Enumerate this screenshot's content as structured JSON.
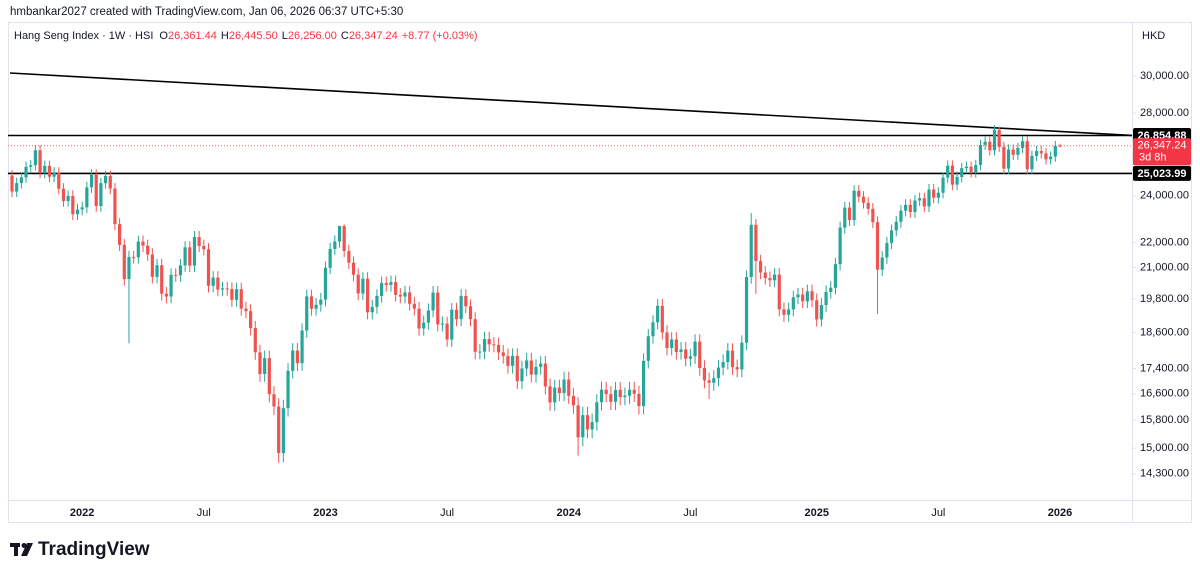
{
  "header": {
    "credit": "hmbankar2027 created with TradingView.com, Jan 06, 2026 06:37 UTC+5:30",
    "symbol": "Hang Seng Index · 1W · HSI",
    "ohlc": [
      {
        "key": "O",
        "value": "26,361.44"
      },
      {
        "key": "H",
        "value": "26,445.50"
      },
      {
        "key": "L",
        "value": "26,256.00"
      },
      {
        "key": "C",
        "value": "26,347.24"
      }
    ],
    "change": "+8.77 (+0.03%)",
    "currency": "HKD"
  },
  "footer": {
    "logo": "TradingView"
  },
  "chart_data": {
    "type": "candlestick",
    "log_scale": true,
    "grid": false,
    "up_color": "#26a69a",
    "down_color": "#ef5350",
    "categories": [
      null,
      null,
      null,
      null,
      null,
      null,
      null,
      null,
      null,
      null,
      null,
      null,
      null,
      null,
      null,
      "2022",
      null,
      null,
      null,
      null,
      null,
      null,
      null,
      null,
      null,
      null,
      null,
      null,
      null,
      null,
      null,
      null,
      null,
      null,
      null,
      null,
      null,
      null,
      null,
      null,
      null,
      "Jul",
      null,
      null,
      null,
      null,
      null,
      null,
      null,
      null,
      null,
      null,
      null,
      null,
      null,
      null,
      null,
      null,
      null,
      null,
      null,
      null,
      null,
      null,
      null,
      null,
      null,
      "2023",
      null,
      null,
      null,
      null,
      null,
      null,
      null,
      null,
      null,
      null,
      null,
      null,
      null,
      null,
      null,
      null,
      null,
      null,
      null,
      null,
      null,
      null,
      null,
      null,
      null,
      "Jul",
      null,
      null,
      null,
      null,
      null,
      null,
      null,
      null,
      null,
      null,
      null,
      null,
      null,
      null,
      null,
      null,
      null,
      null,
      null,
      null,
      null,
      null,
      null,
      null,
      null,
      "2024",
      null,
      null,
      null,
      null,
      null,
      null,
      null,
      null,
      null,
      null,
      null,
      null,
      null,
      null,
      null,
      null,
      null,
      null,
      null,
      null,
      null,
      null,
      null,
      null,
      null,
      "Jul",
      null,
      null,
      null,
      null,
      null,
      null,
      null,
      null,
      null,
      null,
      null,
      null,
      null,
      null,
      null,
      null,
      null,
      null,
      null,
      null,
      null,
      null,
      null,
      null,
      null,
      null,
      "2025",
      null,
      null,
      null,
      null,
      null,
      null,
      null,
      null,
      null,
      null,
      null,
      null,
      null,
      null,
      null,
      null,
      null,
      null,
      null,
      null,
      null,
      null,
      null,
      null,
      null,
      "Jul",
      null,
      null,
      null,
      null,
      null,
      null,
      null,
      null,
      null,
      null,
      null,
      null,
      null,
      null,
      null,
      null,
      null,
      null,
      null,
      null,
      null,
      null,
      null,
      null,
      null,
      "2026"
    ],
    "open": [
      24920,
      24192,
      24576,
      24838,
      25331,
      25409,
      26127,
      25049,
      25377,
      24870,
      25068,
      24319,
      23766,
      23996,
      23193,
      23398,
      23493,
      24383,
      24966,
      23550,
      24573,
      24906,
      24327,
      22767,
      21905,
      20553,
      21412,
      21404,
      22039,
      21872,
      21518,
      20638,
      21089,
      20001,
      19898,
      20717,
      20697,
      21082,
      21806,
      21075,
      22229,
      21860,
      21725,
      20297,
      20609,
      20156,
      20201,
      20175,
      19773,
      20170,
      19452,
      19362,
      18761,
      17933,
      17222,
      17740,
      16587,
      16211,
      14863,
      16161,
      17326,
      17993,
      17573,
      18675,
      19900,
      19450,
      19593,
      19781,
      20991,
      21738,
      22045,
      22689,
      21660,
      21190,
      20719,
      20010,
      20567,
      19320,
      19518,
      19916,
      20400,
      20331,
      20439,
      19959,
      19895,
      20049,
      19627,
      19451,
      18746,
      18950,
      19390,
      20040,
      18890,
      18916,
      18366,
      19414,
      19075,
      19917,
      19539,
      19075,
      17950,
      17956,
      18382,
      18202,
      18182,
      17929,
      17809,
      17485,
      17813,
      16995,
      17399,
      17664,
      17203,
      17454,
      17560,
      16830,
      16334,
      16792,
      16621,
      17047,
      16535,
      16244,
      15308,
      15952,
      15533,
      15747,
      16340,
      16726,
      16589,
      16353,
      16721,
      16499,
      16541,
      16724,
      16600,
      16224,
      17651,
      18476,
      18964,
      19553,
      18609,
      18079,
      18367,
      17942,
      18028,
      17719,
      17800,
      18293,
      17417,
      17021,
      16945,
      17090,
      17430,
      17612,
      17989,
      17444,
      17369,
      18258,
      20632,
      22737,
      21252,
      20804,
      20590,
      20506,
      20728,
      19426,
      19230,
      19424,
      19866,
      19971,
      19721,
      20091,
      19760,
      19064,
      19584,
      20066,
      20225,
      21133,
      22620,
      23478,
      22941,
      24231,
      23959,
      23690,
      23426,
      22849,
      20915,
      21395,
      21980,
      22504,
      22868,
      23345,
      23601,
      23290,
      23792,
      23893,
      23530,
      24284,
      23916,
      24139,
      24826,
      25388,
      24507,
      24859,
      25270,
      25339,
      25077,
      25418,
      26388,
      26545,
      26128,
      27141,
      26290,
      25247,
      26160,
      25907,
      26241,
      26572,
      25220,
      25858,
      26085,
      25976,
      25690,
      25818,
      26361.44
    ],
    "high": [
      25170,
      24826,
      25088,
      25581,
      25659,
      26377,
      26377,
      25627,
      25627,
      25318,
      25318,
      24569,
      24246,
      24246,
      23648,
      23743,
      24633,
      25216,
      25216,
      24823,
      25156,
      25156,
      24577,
      23017,
      22155,
      21662,
      21662,
      22289,
      22289,
      22122,
      21768,
      21339,
      21339,
      20251,
      20967,
      20967,
      21332,
      22056,
      22056,
      22479,
      22479,
      22110,
      21975,
      20859,
      20859,
      20451,
      20451,
      20425,
      20420,
      20420,
      19702,
      19612,
      19011,
      18183,
      17990,
      17990,
      16837,
      16461,
      16411,
      17576,
      18243,
      18243,
      18925,
      20150,
      20150,
      19843,
      20031,
      21241,
      21988,
      22295,
      22700,
      22760,
      21910,
      21440,
      20969,
      20817,
      20817,
      19768,
      20166,
      20650,
      20650,
      20689,
      20689,
      20209,
      20299,
      20299,
      19877,
      19701,
      19200,
      19640,
      20290,
      20290,
      19166,
      19166,
      19664,
      19664,
      20167,
      20167,
      19789,
      19325,
      18206,
      18632,
      18632,
      18452,
      18432,
      18179,
      18059,
      18063,
      18063,
      17649,
      17914,
      17914,
      17704,
      17810,
      17810,
      17080,
      17042,
      17042,
      17297,
      17297,
      16785,
      16494,
      16202,
      16202,
      15997,
      16590,
      16976,
      16976,
      16839,
      16971,
      16971,
      16791,
      16974,
      16974,
      16850,
      17901,
      18726,
      19214,
      19803,
      19803,
      18859,
      18617,
      18617,
      18278,
      18278,
      18050,
      18543,
      18543,
      17667,
      17271,
      17340,
      17680,
      17862,
      18239,
      18239,
      17694,
      18508,
      20882,
      23241,
      22987,
      21502,
      21054,
      20840,
      20978,
      20978,
      19676,
      19674,
      20116,
      20221,
      20221,
      20341,
      20341,
      20010,
      19834,
      20316,
      20475,
      21383,
      22870,
      23728,
      23728,
      24481,
      24481,
      24209,
      23940,
      23676,
      23099,
      21645,
      22230,
      22754,
      23118,
      23595,
      23851,
      23851,
      24042,
      24143,
      24143,
      24534,
      24534,
      24389,
      25076,
      25638,
      25638,
      25109,
      25520,
      25589,
      25589,
      25668,
      26638,
      26795,
      26795,
      27381,
      27300,
      26540,
      26410,
      26410,
      26491,
      26822,
      26822,
      26108,
      26335,
      26335,
      26226,
      26068,
      26588,
      26445.5
    ],
    "low": [
      23942,
      23942,
      24326,
      24588,
      25081,
      25159,
      24799,
      24799,
      24620,
      24620,
      24069,
      23516,
      23516,
      22943,
      22943,
      23148,
      23243,
      24133,
      23300,
      23300,
      24323,
      24077,
      22517,
      21655,
      20303,
      18235,
      21154,
      21154,
      21622,
      21268,
      20388,
      20388,
      19751,
      19648,
      19648,
      20447,
      20447,
      20832,
      20825,
      20825,
      21610,
      21475,
      20047,
      20047,
      19906,
      19906,
      19925,
      19523,
      19523,
      19202,
      19112,
      18511,
      17683,
      16972,
      16972,
      16337,
      15961,
      14597,
      14613,
      15911,
      17076,
      17323,
      17323,
      18425,
      19200,
      19200,
      19343,
      19531,
      20741,
      21488,
      21795,
      21410,
      20940,
      20469,
      19760,
      19760,
      19070,
      19070,
      19268,
      19666,
      20081,
      20081,
      19709,
      19645,
      19645,
      19377,
      19201,
      18496,
      18496,
      18700,
      19140,
      18640,
      18640,
      18116,
      18116,
      18825,
      18825,
      19289,
      18825,
      17700,
      17700,
      17706,
      17952,
      17932,
      17679,
      17559,
      17235,
      17235,
      16745,
      16745,
      17149,
      16953,
      16953,
      17204,
      16580,
      16084,
      16084,
      16371,
      16371,
      16285,
      15994,
      14794,
      15058,
      15283,
      15283,
      15497,
      16090,
      16339,
      16103,
      16103,
      16249,
      16249,
      16291,
      16350,
      15974,
      15974,
      17401,
      18226,
      18714,
      18359,
      17829,
      17829,
      17692,
      17692,
      17469,
      17469,
      17550,
      17167,
      16771,
      16441,
      16695,
      16840,
      17180,
      17362,
      17194,
      17119,
      17119,
      18008,
      20382,
      20002,
      20554,
      20340,
      20256,
      20256,
      19176,
      18980,
      18980,
      19174,
      19616,
      19471,
      19471,
      19510,
      18814,
      18814,
      19334,
      19816,
      19975,
      20883,
      22370,
      22691,
      22691,
      23709,
      23440,
      23176,
      22599,
      19260,
      20665,
      21145,
      21730,
      22254,
      22618,
      23095,
      23040,
      23040,
      23542,
      23280,
      23280,
      23666,
      23666,
      23889,
      24576,
      24257,
      24257,
      24609,
      25020,
      24827,
      24827,
      25168,
      26138,
      25878,
      25878,
      26040,
      24997,
      24997,
      25657,
      25657,
      25991,
      24970,
      24970,
      25608,
      25726,
      25440,
      25440,
      25568,
      26256
    ],
    "close": [
      24192,
      24576,
      24838,
      25331,
      25409,
      26127,
      25049,
      25377,
      24870,
      25068,
      24319,
      23766,
      23996,
      23193,
      23398,
      23493,
      24383,
      24966,
      23550,
      24573,
      24906,
      24327,
      22767,
      21905,
      20553,
      21412,
      21404,
      22039,
      21872,
      21518,
      20638,
      21089,
      20001,
      19898,
      20717,
      20697,
      21082,
      21806,
      21075,
      22229,
      21860,
      21725,
      20297,
      20609,
      20156,
      20201,
      20175,
      19773,
      20170,
      19452,
      19362,
      18761,
      17933,
      17222,
      17740,
      16587,
      16211,
      14863,
      16161,
      17326,
      17993,
      17573,
      18675,
      19900,
      19450,
      19593,
      19781,
      20991,
      21738,
      22045,
      22689,
      21660,
      21190,
      20719,
      20010,
      20567,
      19320,
      19518,
      19916,
      20400,
      20331,
      20439,
      19959,
      19895,
      20049,
      19627,
      19451,
      18746,
      18950,
      19390,
      20040,
      18890,
      18916,
      18366,
      19414,
      19075,
      19917,
      19539,
      19075,
      17950,
      17956,
      18382,
      18202,
      18182,
      17929,
      17809,
      17485,
      17813,
      16995,
      17399,
      17664,
      17203,
      17454,
      17560,
      16830,
      16334,
      16792,
      16621,
      17047,
      16535,
      16244,
      15308,
      15952,
      15533,
      15747,
      16340,
      16726,
      16589,
      16353,
      16721,
      16499,
      16541,
      16724,
      16600,
      16224,
      17651,
      18476,
      18964,
      19553,
      18609,
      18079,
      18367,
      17942,
      18028,
      17719,
      17800,
      18293,
      17417,
      17021,
      16945,
      17090,
      17430,
      17612,
      17989,
      17444,
      17369,
      18258,
      20632,
      22737,
      21252,
      20804,
      20590,
      20506,
      20728,
      19426,
      19230,
      19424,
      19866,
      19971,
      19721,
      20091,
      19760,
      19064,
      19584,
      20066,
      20225,
      21133,
      22620,
      23478,
      22941,
      24231,
      23959,
      23690,
      23426,
      22849,
      20915,
      21395,
      21980,
      22504,
      22868,
      23345,
      23601,
      23290,
      23792,
      23893,
      23530,
      24284,
      23916,
      24139,
      24826,
      25388,
      24507,
      24859,
      25270,
      25339,
      25077,
      25418,
      26388,
      26545,
      26128,
      27141,
      26290,
      25247,
      26160,
      25907,
      26241,
      26572,
      25220,
      25858,
      26085,
      25976,
      25690,
      25818,
      26338.47,
      26347.24
    ],
    "ylim": [
      13620,
      31490
    ],
    "yticks": [
      {
        "value": 14300,
        "label": "14,300.00"
      },
      {
        "value": 15000,
        "label": "15,000.00"
      },
      {
        "value": 15800,
        "label": "15,800.00"
      },
      {
        "value": 16600,
        "label": "16,600.00"
      },
      {
        "value": 17400,
        "label": "17,400.00"
      },
      {
        "value": 18600,
        "label": "18,600.00"
      },
      {
        "value": 19800,
        "label": "19,800.00"
      },
      {
        "value": 21000,
        "label": "21,000.00"
      },
      {
        "value": 22000,
        "label": "22,000.00"
      },
      {
        "value": 24000,
        "label": "24,000.00"
      },
      {
        "value": 28000,
        "label": "28,000.00"
      },
      {
        "value": 30000,
        "label": "30,000.00"
      }
    ],
    "hlines": [
      {
        "value": 26854.88,
        "label": "26,854.88"
      },
      {
        "value": 25023.99,
        "label": "25,023.99"
      }
    ],
    "trendline": [
      30170,
      26855
    ],
    "last_price": {
      "value": 26347.24,
      "label": "26,347.24",
      "countdown": "3d 8h",
      "color": "#f23645"
    }
  }
}
